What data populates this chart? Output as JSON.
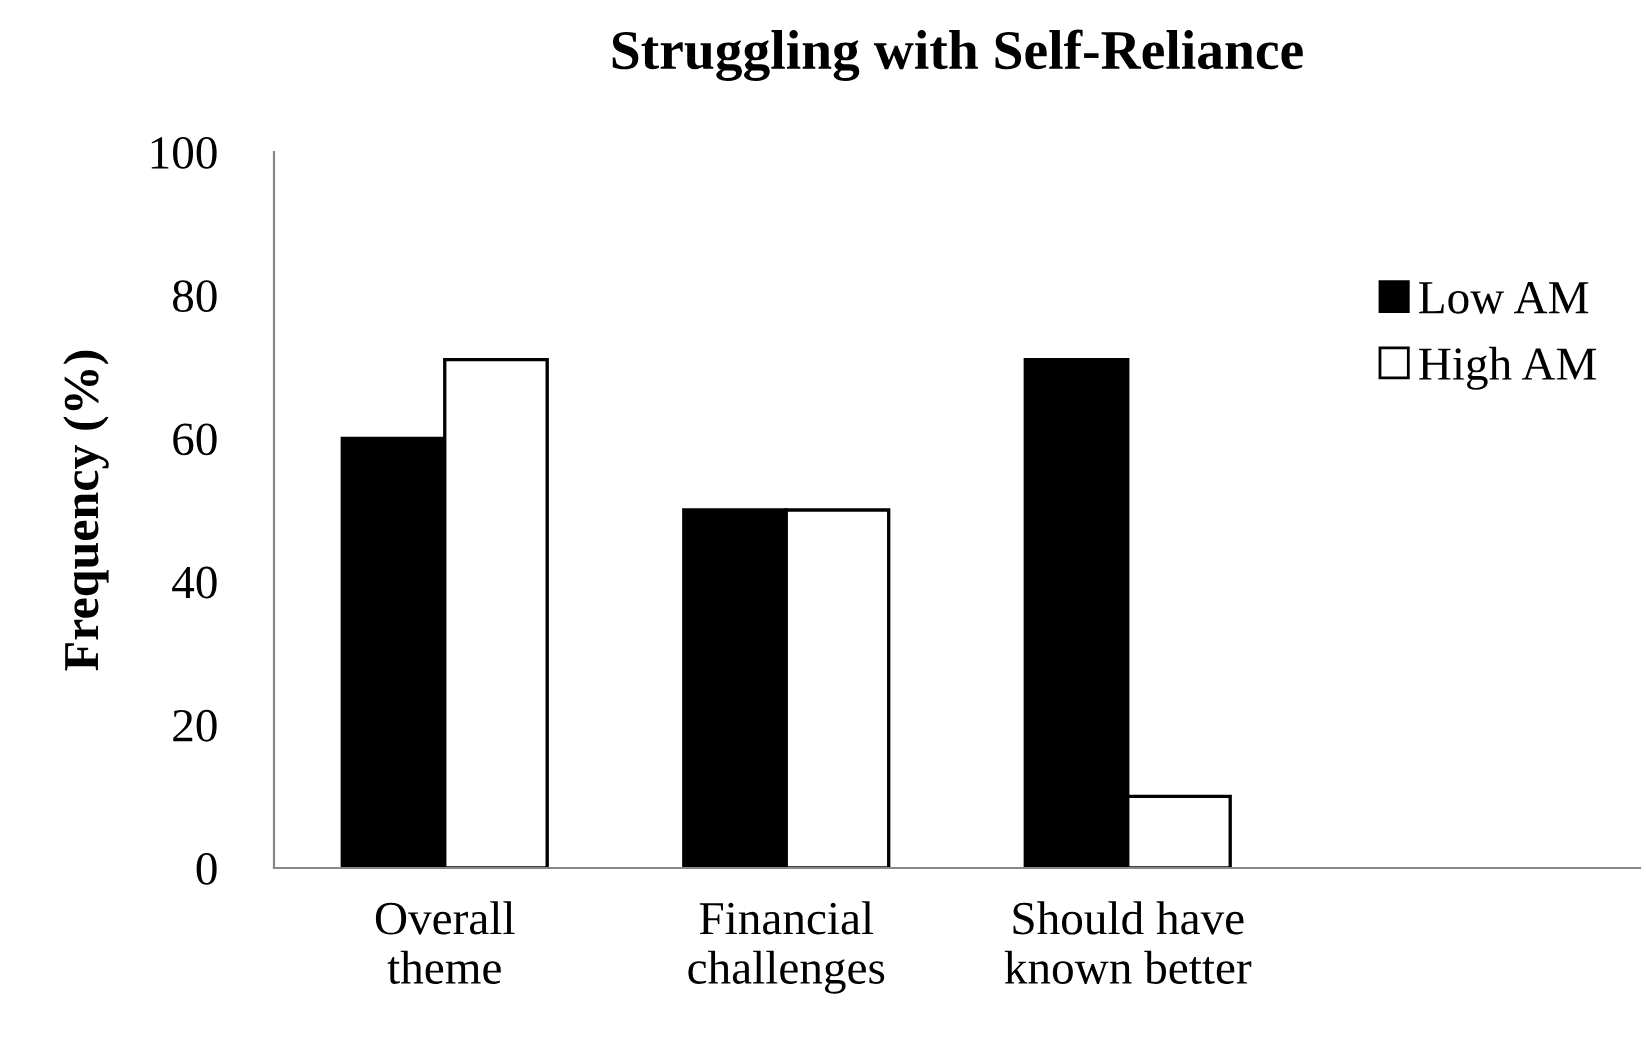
{
  "chart_data": {
    "type": "bar",
    "title": "Struggling with Self-Reliance",
    "ylabel": "Frequency (%)",
    "categories": [
      "Overall\ntheme",
      "Financial\nchallenges",
      "Should have\nknown better",
      null
    ],
    "series": [
      {
        "name": "Low AM",
        "color": "#000000",
        "values": [
          60,
          50,
          71,
          null
        ]
      },
      {
        "name": "High AM",
        "color": "#ffffff",
        "values": [
          71,
          50,
          10,
          null
        ]
      }
    ],
    "ylim": [
      0,
      100
    ],
    "yticks": [
      0,
      20,
      40,
      60,
      80,
      100
    ],
    "grid": false,
    "legend": "top right"
  }
}
